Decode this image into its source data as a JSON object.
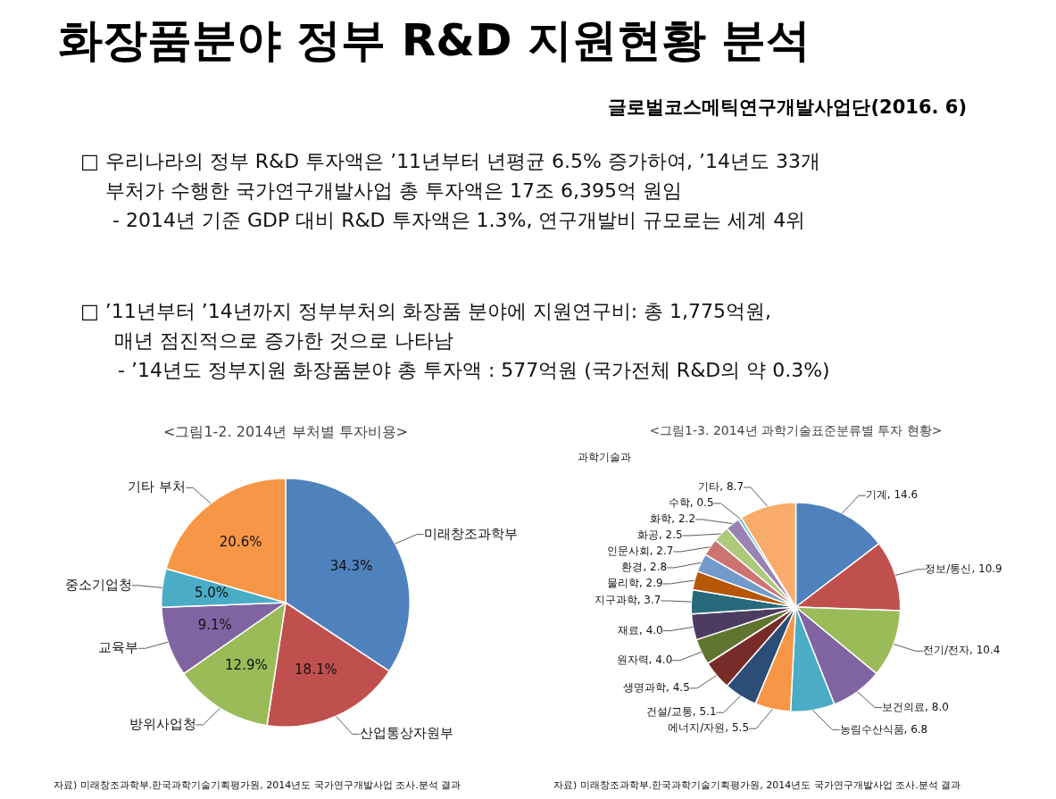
{
  "chart_data": [
    {
      "type": "other",
      "title": "화장품분야 정부 R&D 지원현황 분석",
      "subtitle": "글로벌코스메틱연구개발사업단(2016. 6)",
      "annotations": [
        "□ 우리나라의 정부 R&D 투자액은 ’11년부터 년평균 6.5% 증가하여, ’14년도 33개",
        "부처가 수행한 국가연구개발사업 총 투자액은 17조 6,395억 원임",
        "- 2014년 기준 GDP 대비 R&D 투자액은 1.3%, 연구개발비 규모로는 세계 4위",
        "□ ’11년부터 ’14년까지 정부부처의 화장품 분야에 지원연구비: 총 1,775억원,",
        "매년 점진적으로 증가한 것으로 나타남",
        "- ’14년도 정부지원 화장품분야 총 투자액 : 577억원 (국가전체 R&D의 약 0.3%)"
      ]
    },
    {
      "type": "pie",
      "title": "<그림1-2.  2014년 부처별 투자비용>",
      "categories": [
        "미래창조과학부",
        "산업통상자원부",
        "방위사업청",
        "교육부",
        "중소기업청",
        "기타 부처"
      ],
      "values": [
        34.3,
        18.1,
        12.9,
        9.1,
        5.0,
        20.6
      ],
      "value_labels": [
        "34.3%",
        "18.1%",
        "12.9%",
        "9.1%",
        "5.0%",
        "20.6%"
      ],
      "colors": [
        "#4f81bd",
        "#c0504d",
        "#9bbb59",
        "#8064a2",
        "#4bacc6",
        "#f79646"
      ],
      "annotations": [
        "자료) 미래창조과학부.한국과학기술기획평가원,  2014년도  국가연구개발사업  조사.분석  결과"
      ]
    },
    {
      "type": "pie",
      "title": "<그림1-3.  2014년 과학기술표준분류별  투자 현황>",
      "categories": [
        "기계",
        "정보/통신",
        "전기/전자",
        "보건의료",
        "농림수산식품",
        "에너지/자원",
        "건설/교통",
        "생명과학",
        "원자력",
        "재료",
        "지구과학",
        "물리학",
        "환경",
        "인문사회",
        "화공",
        "화학",
        "수학",
        "기타"
      ],
      "values": [
        14.6,
        10.9,
        10.4,
        8.0,
        6.8,
        5.5,
        5.1,
        4.5,
        4.0,
        4.0,
        3.7,
        2.9,
        2.8,
        2.7,
        2.5,
        2.2,
        0.5,
        8.7
      ],
      "value_labels": [
        "14.6",
        "10.9",
        "10.4",
        "8.0",
        "6.8",
        "5.5",
        "5.1",
        "4.5",
        "4.0",
        "4.0",
        "3.7",
        "2.9",
        "2.8",
        "2.7",
        "2.5",
        "2.2",
        "0.5",
        "8.7"
      ],
      "data_labels": true,
      "colors": [
        "#4f81bd",
        "#c0504d",
        "#9bbb59",
        "#8064a2",
        "#4bacc6",
        "#f79646",
        "#2c4d75",
        "#772c2a",
        "#5f7530",
        "#4d3b62",
        "#276a7c",
        "#b65708",
        "#729aca",
        "#cd7371",
        "#afc97a",
        "#9983b5",
        "#6fbdd1",
        "#f9ab6b"
      ],
      "annotations": [
        "과학기술과",
        "자료) 미래창조과학부.한국과학기술기획평가원,  2014년도  국가연구개발사업  조사.분석  결과"
      ]
    }
  ]
}
